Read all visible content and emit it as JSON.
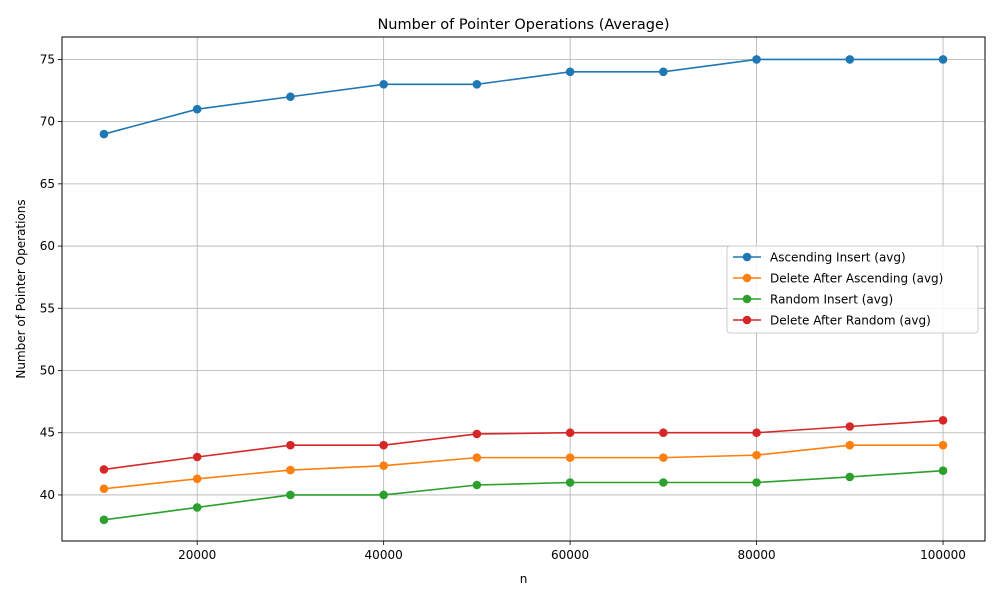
{
  "chart_data": {
    "type": "line",
    "title": "Number of Pointer Operations (Average)",
    "xlabel": "n",
    "ylabel": "Number of Pointer Operations",
    "x": [
      10000,
      20000,
      30000,
      40000,
      50000,
      60000,
      70000,
      80000,
      90000,
      100000
    ],
    "xlim": [
      5500,
      104500
    ],
    "ylim": [
      36.3,
      76.8
    ],
    "xticks": [
      20000,
      40000,
      60000,
      80000,
      100000
    ],
    "xtick_labels": [
      "20000",
      "40000",
      "60000",
      "80000",
      "100000"
    ],
    "yticks": [
      40,
      45,
      50,
      55,
      60,
      65,
      70,
      75
    ],
    "ytick_labels": [
      "40",
      "45",
      "50",
      "55",
      "60",
      "65",
      "70",
      "75"
    ],
    "grid": true,
    "legend_position": "center-right",
    "series": [
      {
        "name": "Ascending Insert (avg)",
        "color": "#1f77b4",
        "marker": "circle",
        "values": [
          69,
          71,
          72,
          73,
          73,
          74,
          74,
          75,
          75,
          75
        ]
      },
      {
        "name": "Delete After Ascending (avg)",
        "color": "#ff7f0e",
        "marker": "circle",
        "values": [
          40.5,
          41.3,
          42,
          42.35,
          43,
          43,
          43,
          43.2,
          44,
          44
        ]
      },
      {
        "name": "Random Insert (avg)",
        "color": "#2ca02c",
        "marker": "circle",
        "values": [
          38,
          39,
          40,
          40,
          40.8,
          41,
          41,
          41,
          41.45,
          41.95
        ]
      },
      {
        "name": "Delete After Random (avg)",
        "color": "#d62728",
        "marker": "circle",
        "values": [
          42.05,
          43.05,
          44,
          44,
          44.9,
          45,
          45,
          45,
          45.5,
          46
        ]
      }
    ]
  }
}
